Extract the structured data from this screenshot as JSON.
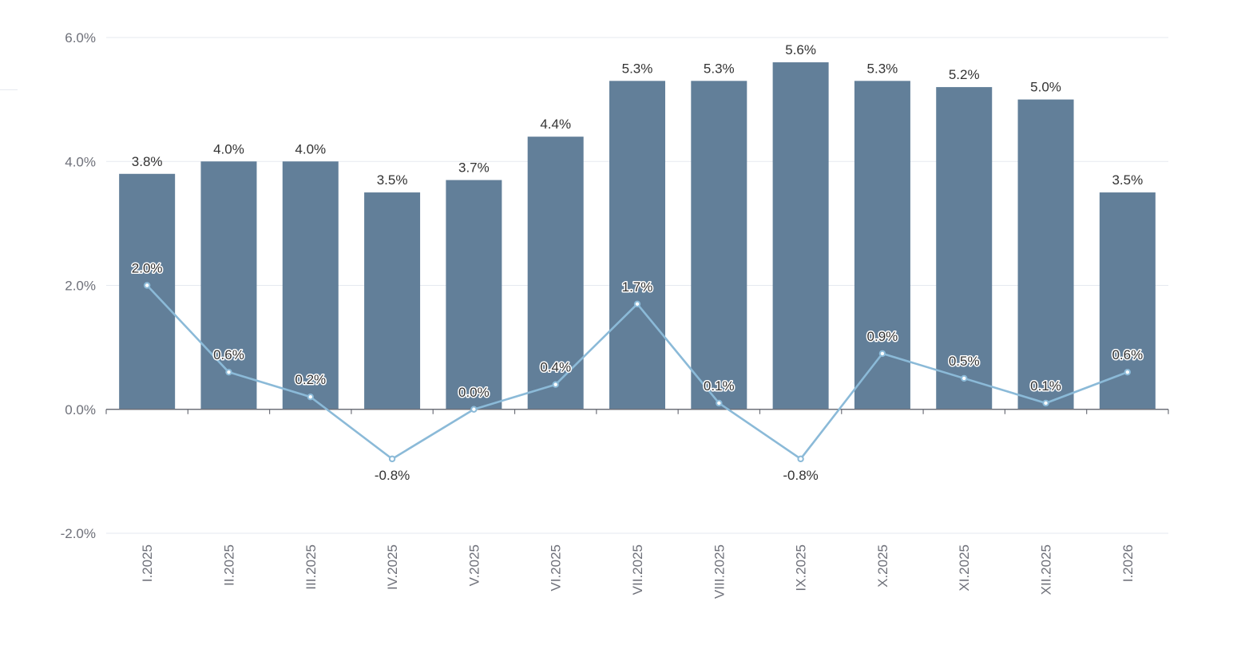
{
  "chart_data": {
    "type": "bar",
    "title": "",
    "xlabel": "",
    "ylabel": "",
    "ylim": [
      -2.0,
      6.0
    ],
    "yticks": [
      -2.0,
      0.0,
      2.0,
      4.0,
      6.0
    ],
    "ytick_labels": [
      "-2.0%",
      "0.0%",
      "2.0%",
      "4.0%",
      "6.0%"
    ],
    "categories": [
      "I.2025",
      "II.2025",
      "III.2025",
      "IV.2025",
      "V.2025",
      "VI.2025",
      "VII.2025",
      "VIII.2025",
      "IX.2025",
      "X.2025",
      "XI.2025",
      "XII.2025",
      "I.2026"
    ],
    "series": [
      {
        "name": "bars",
        "type": "bar",
        "color": "#627f99",
        "values": [
          3.8,
          4.0,
          4.0,
          3.5,
          3.7,
          4.4,
          5.3,
          5.3,
          5.6,
          5.3,
          5.2,
          5.0,
          3.5
        ],
        "labels": [
          "3.8%",
          "4.0%",
          "4.0%",
          "3.5%",
          "3.7%",
          "4.4%",
          "5.3%",
          "5.3%",
          "5.6%",
          "5.3%",
          "5.2%",
          "5.0%",
          "3.5%"
        ]
      },
      {
        "name": "line",
        "type": "line",
        "color": "#8bbad8",
        "values": [
          2.0,
          0.6,
          0.2,
          -0.8,
          0.0,
          0.4,
          1.7,
          0.1,
          -0.8,
          0.9,
          0.5,
          0.1,
          0.6
        ],
        "labels": [
          "2.0%",
          "0.6%",
          "0.2%",
          "-0.8%",
          "0.0%",
          "0.4%",
          "1.7%",
          "0.1%",
          "-0.8%",
          "0.9%",
          "0.5%",
          "0.1%",
          "0.6%"
        ]
      }
    ],
    "grid": true,
    "legend": "none"
  },
  "colors": {
    "bar": "#627f99",
    "line": "#8bbad8",
    "grid": "#e6e9ef",
    "axis": "#6e7079",
    "label_text": "#333333",
    "tick_text": "#6e7079"
  }
}
